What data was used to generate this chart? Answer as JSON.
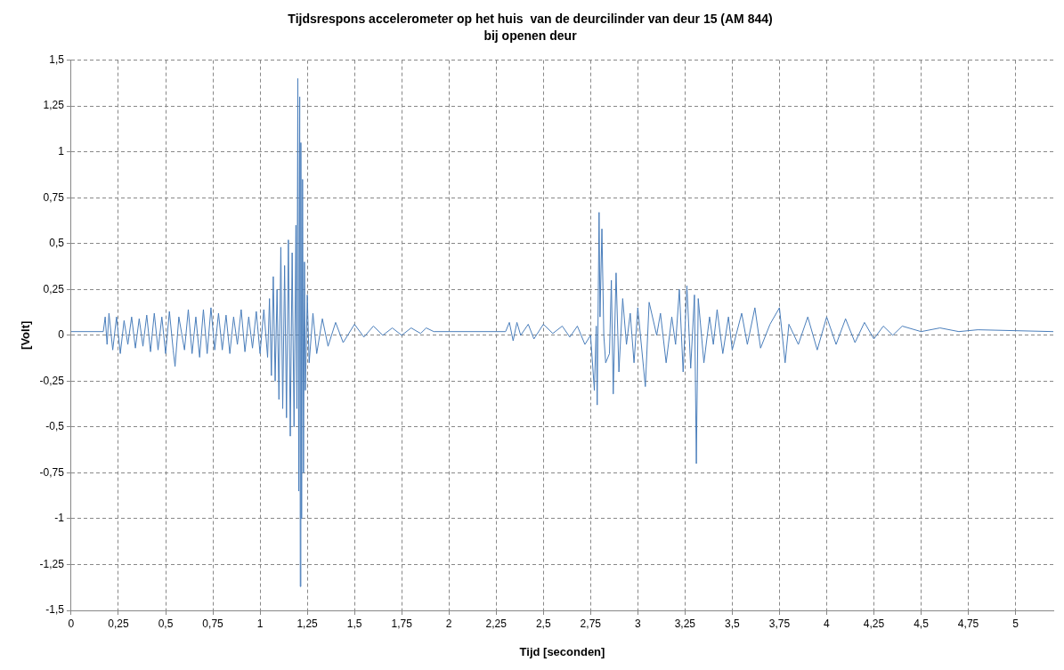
{
  "chart_data": {
    "type": "line",
    "title": "Tijdsrespons accelerometer op het huis  van de deurcilinder van deur 15 (AM 844)",
    "subtitle": "bij openen deur",
    "xlabel": "Tijd [seconden]",
    "ylabel": "[Volt]",
    "x": [
      0,
      0.17,
      0.18,
      0.19,
      0.2,
      0.22,
      0.24,
      0.26,
      0.28,
      0.3,
      0.32,
      0.34,
      0.36,
      0.38,
      0.4,
      0.42,
      0.44,
      0.46,
      0.48,
      0.5,
      0.52,
      0.54,
      0.55,
      0.57,
      0.6,
      0.62,
      0.64,
      0.66,
      0.68,
      0.7,
      0.72,
      0.74,
      0.76,
      0.78,
      0.8,
      0.82,
      0.84,
      0.86,
      0.88,
      0.9,
      0.92,
      0.94,
      0.96,
      0.98,
      1.0,
      1.02,
      1.04,
      1.05,
      1.06,
      1.07,
      1.08,
      1.09,
      1.1,
      1.11,
      1.12,
      1.13,
      1.14,
      1.15,
      1.16,
      1.17,
      1.18,
      1.19,
      1.195,
      1.2,
      1.205,
      1.21,
      1.213,
      1.216,
      1.22,
      1.225,
      1.23,
      1.235,
      1.24,
      1.25,
      1.26,
      1.28,
      1.3,
      1.33,
      1.36,
      1.4,
      1.44,
      1.5,
      1.55,
      1.6,
      1.65,
      1.7,
      1.75,
      1.8,
      1.85,
      1.88,
      1.92,
      2.3,
      2.32,
      2.34,
      2.36,
      2.38,
      2.42,
      2.45,
      2.5,
      2.55,
      2.6,
      2.64,
      2.68,
      2.72,
      2.75,
      2.77,
      2.78,
      2.785,
      2.795,
      2.8,
      2.81,
      2.82,
      2.83,
      2.85,
      2.86,
      2.87,
      2.885,
      2.9,
      2.92,
      2.94,
      2.96,
      2.98,
      3.0,
      3.04,
      3.06,
      3.1,
      3.12,
      3.15,
      3.18,
      3.2,
      3.22,
      3.24,
      3.26,
      3.28,
      3.3,
      3.31,
      3.32,
      3.35,
      3.38,
      3.4,
      3.42,
      3.45,
      3.48,
      3.5,
      3.55,
      3.58,
      3.62,
      3.65,
      3.7,
      3.75,
      3.78,
      3.8,
      3.85,
      3.9,
      3.95,
      4.0,
      4.05,
      4.1,
      4.15,
      4.2,
      4.25,
      4.3,
      4.35,
      4.4,
      4.5,
      4.6,
      4.7,
      4.8,
      5.2
    ],
    "series": [
      {
        "color": "#4a7ebb",
        "values": [
          0.02,
          0.02,
          0.1,
          -0.05,
          0.12,
          -0.08,
          0.1,
          -0.1,
          0.08,
          -0.05,
          0.1,
          -0.07,
          0.09,
          -0.06,
          0.11,
          -0.09,
          0.12,
          -0.08,
          0.1,
          -0.1,
          0.13,
          -0.08,
          -0.17,
          0.1,
          -0.08,
          0.14,
          -0.1,
          0.1,
          -0.12,
          0.14,
          -0.1,
          0.15,
          -0.08,
          0.12,
          -0.08,
          0.11,
          -0.1,
          0.1,
          -0.05,
          0.14,
          -0.09,
          0.1,
          -0.07,
          0.13,
          -0.1,
          0.14,
          -0.12,
          0.2,
          -0.22,
          0.32,
          -0.25,
          0.25,
          -0.35,
          0.48,
          -0.4,
          0.38,
          -0.45,
          0.52,
          -0.55,
          0.45,
          -0.5,
          0.6,
          -0.4,
          1.4,
          -0.85,
          1.3,
          -1.37,
          1.05,
          -1.0,
          0.85,
          -0.75,
          0.4,
          -0.3,
          0.22,
          -0.15,
          0.12,
          -0.1,
          0.09,
          -0.06,
          0.07,
          -0.04,
          0.06,
          -0.01,
          0.05,
          0.0,
          0.04,
          0.0,
          0.04,
          0.01,
          0.04,
          0.02,
          0.02,
          0.07,
          -0.03,
          0.07,
          0.0,
          0.06,
          -0.02,
          0.06,
          0.01,
          0.05,
          -0.01,
          0.05,
          -0.05,
          0.0,
          -0.3,
          0.05,
          -0.38,
          0.67,
          0.1,
          0.58,
          0.0,
          -0.15,
          -0.1,
          0.3,
          -0.32,
          0.34,
          -0.2,
          0.2,
          -0.05,
          0.12,
          -0.15,
          0.15,
          -0.28,
          0.18,
          0.0,
          0.12,
          -0.15,
          0.1,
          -0.05,
          0.25,
          -0.2,
          0.27,
          -0.18,
          0.22,
          -0.7,
          0.2,
          -0.15,
          0.1,
          -0.05,
          0.14,
          -0.1,
          0.1,
          -0.08,
          0.12,
          -0.05,
          0.15,
          -0.07,
          0.06,
          0.15,
          -0.15,
          0.06,
          -0.05,
          0.1,
          -0.08,
          0.1,
          -0.05,
          0.09,
          -0.04,
          0.07,
          -0.02,
          0.05,
          0.0,
          0.05,
          0.02,
          0.04,
          0.02,
          0.03,
          0.02
        ]
      }
    ],
    "xlim": [
      0,
      5.2
    ],
    "xticks": [
      0,
      {
        "value": 0.25,
        "label": "0,25"
      },
      {
        "value": 0.5,
        "label": "0,5"
      },
      {
        "value": 0.75,
        "label": "0,75"
      },
      1,
      {
        "value": 1.25,
        "label": "1,25"
      },
      {
        "value": 1.5,
        "label": "1,5"
      },
      {
        "value": 1.75,
        "label": "1,75"
      },
      2,
      {
        "value": 2.25,
        "label": "2,25"
      },
      {
        "value": 2.5,
        "label": "2,5"
      },
      {
        "value": 2.75,
        "label": "2,75"
      },
      3,
      {
        "value": 3.25,
        "label": "3,25"
      },
      {
        "value": 3.5,
        "label": "3,5"
      },
      {
        "value": 3.75,
        "label": "3,75"
      },
      4,
      {
        "value": 4.25,
        "label": "4,25"
      },
      {
        "value": 4.5,
        "label": "4,5"
      },
      {
        "value": 4.75,
        "label": "4,75"
      },
      5
    ],
    "ylim": [
      -1.5,
      1.5
    ],
    "yticks": [
      {
        "value": -1.5,
        "label": "-1,5"
      },
      {
        "value": -1.25,
        "label": "-1,25"
      },
      -1,
      {
        "value": -0.75,
        "label": "-0,75"
      },
      {
        "value": -0.5,
        "label": "-0,5"
      },
      {
        "value": -0.25,
        "label": "-0,25"
      },
      0,
      {
        "value": 0.25,
        "label": "0,25"
      },
      {
        "value": 0.5,
        "label": "0,5"
      },
      {
        "value": 0.75,
        "label": "0,75"
      },
      1,
      {
        "value": 1.25,
        "label": "1,25"
      },
      {
        "value": 1.5,
        "label": "1,5"
      }
    ],
    "grid": true,
    "legend": false,
    "marker": "none",
    "line_style": "solid"
  }
}
